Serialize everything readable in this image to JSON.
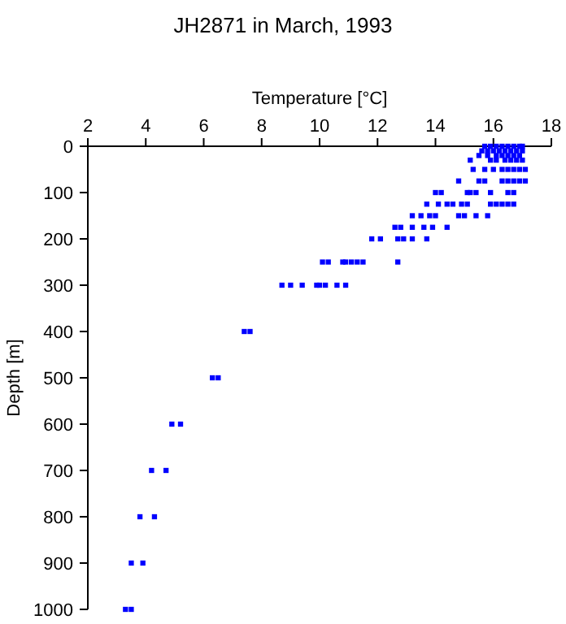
{
  "chart_data": {
    "type": "scatter",
    "title": "JH2871 in March, 1993",
    "xlabel": "Temperature [°C]",
    "ylabel": "Depth [m]",
    "xlim": [
      2,
      18
    ],
    "xticks": [
      2,
      4,
      6,
      8,
      10,
      12,
      14,
      16,
      18
    ],
    "ylim": [
      1000,
      0
    ],
    "yticks": [
      0,
      100,
      200,
      300,
      400,
      500,
      600,
      700,
      800,
      900,
      1000
    ],
    "marker": "square",
    "series": [
      {
        "color": "#0000ff",
        "x": [
          15.7,
          15.9,
          16.1,
          16.3,
          16.5,
          16.7,
          16.9,
          17.0,
          15.6,
          15.8,
          16.0,
          16.2,
          16.4,
          16.6,
          16.8,
          17.0,
          15.5,
          15.8,
          16.1,
          16.3,
          16.5,
          16.7,
          16.9,
          15.2,
          15.9,
          16.1,
          16.4,
          16.6,
          16.8,
          17.0,
          15.3,
          15.7,
          16.0,
          16.3,
          16.5,
          16.7,
          16.9,
          17.1,
          14.8,
          15.5,
          15.7,
          16.3,
          16.5,
          16.7,
          16.9,
          17.1,
          14.0,
          14.2,
          15.1,
          15.2,
          15.4,
          15.9,
          16.5,
          16.7,
          13.7,
          14.1,
          14.4,
          14.6,
          14.9,
          15.1,
          15.9,
          16.1,
          16.3,
          16.5,
          16.7,
          13.2,
          13.5,
          13.8,
          14.0,
          14.8,
          15.0,
          15.4,
          15.8,
          12.6,
          12.8,
          13.2,
          13.6,
          13.9,
          14.4,
          11.8,
          12.1,
          12.7,
          12.9,
          13.2,
          13.7,
          10.1,
          10.3,
          10.8,
          10.9,
          11.1,
          11.3,
          11.5,
          12.7,
          8.7,
          9.0,
          9.4,
          9.9,
          10.0,
          10.2,
          10.6,
          10.9,
          7.4,
          7.6,
          6.3,
          6.5,
          4.9,
          5.2,
          4.2,
          4.7,
          3.8,
          4.3,
          3.5,
          3.9,
          3.3,
          3.5
        ],
        "values": [
          0,
          0,
          0,
          0,
          0,
          0,
          0,
          0,
          10,
          10,
          10,
          10,
          10,
          10,
          10,
          10,
          20,
          20,
          20,
          20,
          20,
          20,
          20,
          30,
          30,
          30,
          30,
          30,
          30,
          30,
          50,
          50,
          50,
          50,
          50,
          50,
          50,
          50,
          75,
          75,
          75,
          75,
          75,
          75,
          75,
          75,
          100,
          100,
          100,
          100,
          100,
          100,
          100,
          100,
          125,
          125,
          125,
          125,
          125,
          125,
          125,
          125,
          125,
          125,
          125,
          150,
          150,
          150,
          150,
          150,
          150,
          150,
          150,
          175,
          175,
          175,
          175,
          175,
          175,
          200,
          200,
          200,
          200,
          200,
          200,
          250,
          250,
          250,
          250,
          250,
          250,
          250,
          250,
          300,
          300,
          300,
          300,
          300,
          300,
          300,
          300,
          400,
          400,
          500,
          500,
          600,
          600,
          700,
          700,
          800,
          800,
          900,
          900,
          1000,
          1000
        ]
      }
    ]
  }
}
